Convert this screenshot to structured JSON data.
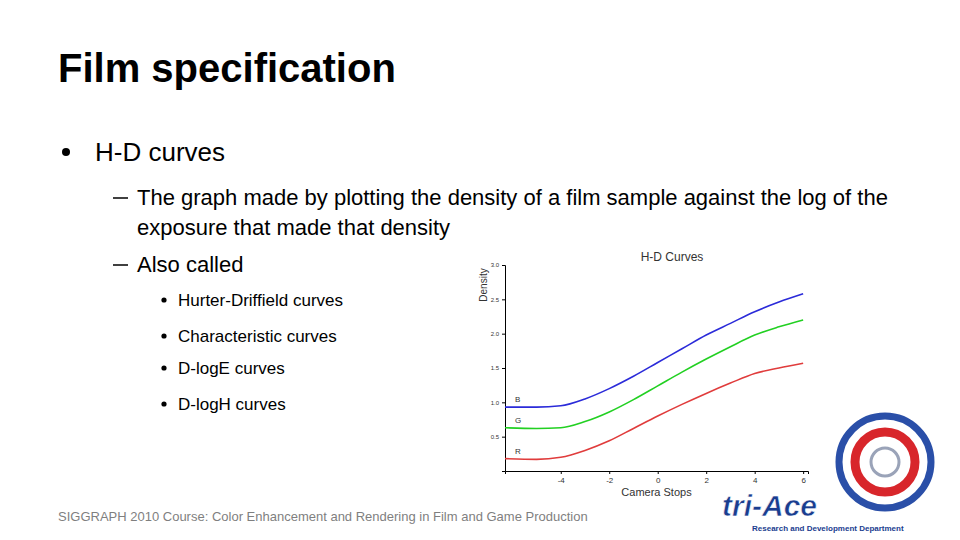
{
  "slide": {
    "title": "Film specification",
    "bullets": [
      {
        "text": "H-D curves",
        "children": [
          {
            "text": "The graph made by plotting the density of a film sample against the log of the exposure that made that density"
          },
          {
            "text": "Also called",
            "children": [
              {
                "text": "Hurter-Driffield curves"
              },
              {
                "text": "Characteristic curves"
              },
              {
                "text": "D-logE curves"
              },
              {
                "text": "D-logH curves"
              }
            ]
          }
        ]
      }
    ],
    "footer": "SIGGRAPH 2010 Course: Color Enhancement and Rendering in Film and Game Production",
    "logo": {
      "text": "tri-Ace",
      "subtitle": "Research and Development Department"
    }
  },
  "chart_data": {
    "type": "line",
    "title": "H-D Curves",
    "x_label": "Camera Stops",
    "y_label": "Density",
    "x": [
      -6.3,
      -5,
      -4,
      -3,
      -2,
      -1,
      0,
      1,
      2,
      3,
      4,
      5,
      6
    ],
    "series": [
      {
        "name": "B",
        "color": "#2b2bd9",
        "values": [
          0.93,
          0.93,
          0.95,
          1.05,
          1.2,
          1.38,
          1.58,
          1.78,
          1.98,
          2.15,
          2.32,
          2.46,
          2.58
        ]
      },
      {
        "name": "G",
        "color": "#22d022",
        "values": [
          0.63,
          0.62,
          0.63,
          0.72,
          0.86,
          1.04,
          1.24,
          1.44,
          1.63,
          1.81,
          1.98,
          2.1,
          2.2
        ]
      },
      {
        "name": "R",
        "color": "#e03c3c",
        "values": [
          0.18,
          0.17,
          0.2,
          0.3,
          0.44,
          0.62,
          0.8,
          0.97,
          1.13,
          1.28,
          1.42,
          1.5,
          1.57
        ]
      }
    ],
    "xlim": [
      -6.3,
      6.2
    ],
    "xticks": [
      -4,
      -2,
      0,
      2,
      4,
      6
    ],
    "ylim": [
      0,
      3
    ],
    "yticks": [
      {
        "value": 0.5,
        "label": "0.5"
      },
      {
        "value": 1,
        "label": "1.0"
      },
      {
        "value": 1.5,
        "label": "1.5"
      },
      {
        "value": 2,
        "label": "2.0"
      },
      {
        "value": 2.5,
        "label": "2.5"
      },
      {
        "value": 3,
        "label": "3.0"
      }
    ],
    "grid": false
  }
}
